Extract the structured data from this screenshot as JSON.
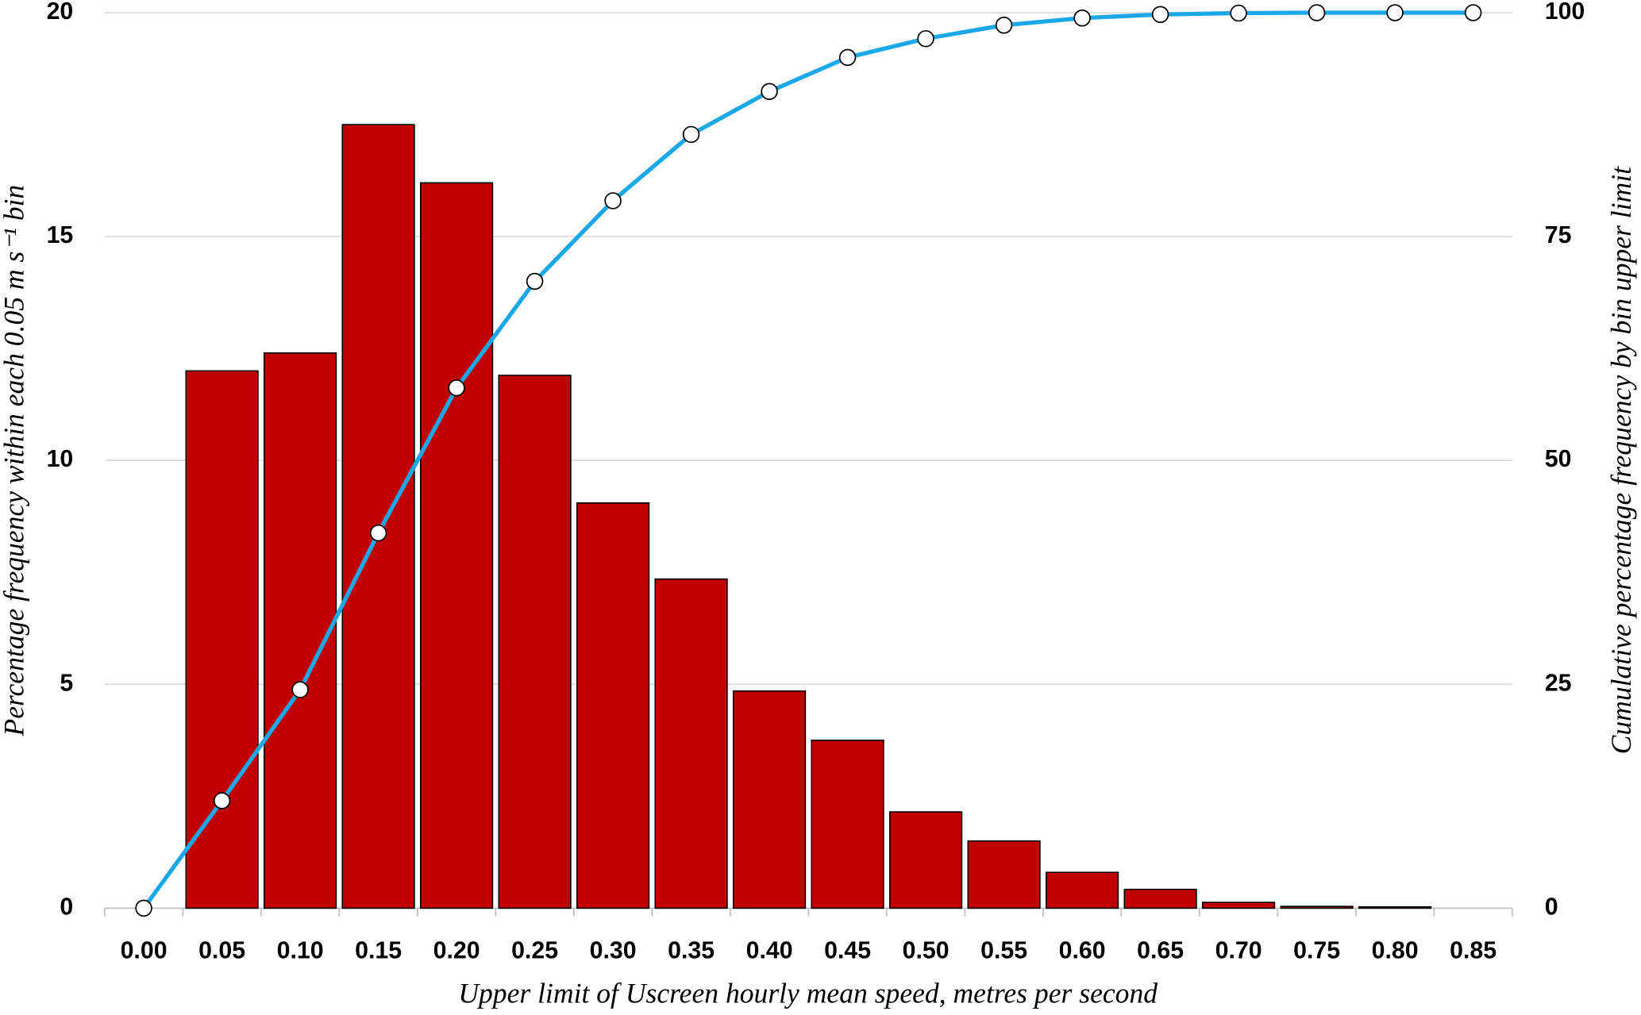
{
  "chart_data": {
    "type": "combo",
    "x_label": "Upper limit of Uscreen hourly mean speed, metres per second",
    "y_label": "Percentage frequency within each 0.05 m s⁻¹ bin",
    "y2_label": "Cumulative percentage frequency by bin upper limit",
    "categories": [
      "0.00",
      "0.05",
      "0.10",
      "0.15",
      "0.20",
      "0.25",
      "0.30",
      "0.35",
      "0.40",
      "0.45",
      "0.50",
      "0.55",
      "0.60",
      "0.65",
      "0.70",
      "0.75",
      "0.80",
      "0.85"
    ],
    "series": [
      {
        "type": "bar",
        "color": "#c00000",
        "values": [
          null,
          12.0,
          12.4,
          17.5,
          16.2,
          11.9,
          9.05,
          7.35,
          4.85,
          3.75,
          2.15,
          1.5,
          0.8,
          0.42,
          0.13,
          0.04,
          0.03,
          null
        ]
      },
      {
        "type": "line",
        "axis": "y2",
        "color": "#1ba8e8",
        "values": [
          0,
          12.0,
          24.4,
          41.9,
          58.1,
          70.0,
          79.0,
          86.4,
          91.2,
          95.0,
          97.1,
          98.6,
          99.4,
          99.8,
          99.95,
          100,
          100,
          100
        ]
      }
    ],
    "ylim": [
      0,
      20
    ],
    "yticks": [
      0,
      5,
      10,
      15,
      20
    ],
    "y2lim": [
      0,
      100
    ],
    "y2ticks": [
      0,
      25,
      50,
      75,
      100
    ],
    "grid": true
  }
}
